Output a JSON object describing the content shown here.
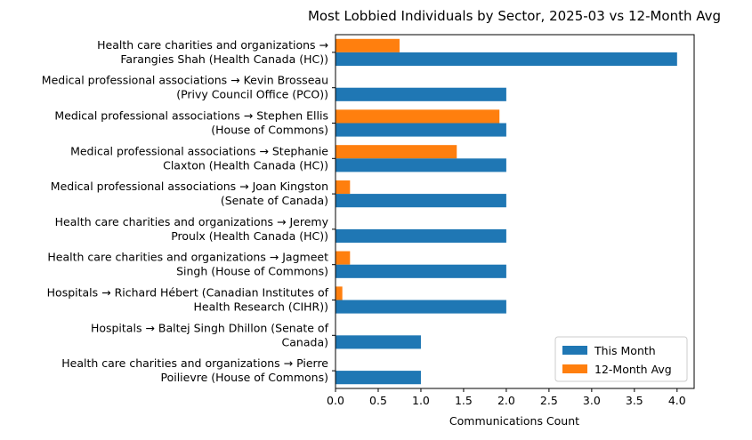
{
  "chart_data": {
    "type": "bar",
    "orientation": "horizontal",
    "title": "Most Lobbied Individuals by Sector, 2025-03 vs 12-Month Avg",
    "xlabel": "Communications Count",
    "ylabel": "",
    "xlim": [
      0,
      4.2
    ],
    "xticks": [
      "0.0",
      "0.5",
      "1.0",
      "1.5",
      "2.0",
      "2.5",
      "3.0",
      "3.5",
      "4.0"
    ],
    "grid": false,
    "legend_position": "bottom-right",
    "categories": [
      [
        "Health care charities and organizations →",
        "Farangies Shah (Health Canada (HC))"
      ],
      [
        "Medical professional associations → Kevin Brosseau",
        "(Privy Council Office (PCO))"
      ],
      [
        "Medical professional associations → Stephen Ellis",
        "(House of Commons)"
      ],
      [
        "Medical professional associations → Stephanie",
        "Claxton (Health Canada (HC))"
      ],
      [
        "Medical professional associations → Joan Kingston",
        "(Senate of Canada)"
      ],
      [
        "Health care charities and organizations → Jeremy",
        "Proulx (Health Canada (HC))"
      ],
      [
        "Health care charities and organizations → Jagmeet",
        "Singh (House of Commons)"
      ],
      [
        "Hospitals → Richard Hébert (Canadian Institutes of",
        "Health Research (CIHR))"
      ],
      [
        "Hospitals → Baltej Singh Dhillon (Senate of",
        "Canada)"
      ],
      [
        "Health care charities and organizations → Pierre",
        "Poilievre (House of Commons)"
      ]
    ],
    "series": [
      {
        "name": "This Month",
        "color": "#1f77b4",
        "values": [
          4,
          2,
          2,
          2,
          2,
          2,
          2,
          2,
          1,
          1
        ]
      },
      {
        "name": "12-Month Avg",
        "color": "#ff7f0e",
        "values": [
          0.75,
          0,
          1.92,
          1.42,
          0.17,
          0,
          0.17,
          0.08,
          0,
          0
        ]
      }
    ]
  }
}
